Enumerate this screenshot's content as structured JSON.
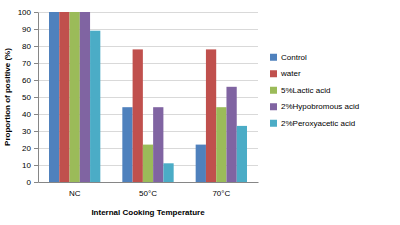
{
  "chart_data": {
    "type": "bar",
    "categories": [
      "NC",
      "50°C",
      "70°C"
    ],
    "series": [
      {
        "name": "Control",
        "color": "#4f81bd",
        "values": [
          100,
          44,
          22
        ]
      },
      {
        "name": "water",
        "color": "#c0504d",
        "values": [
          100,
          78,
          78
        ]
      },
      {
        "name": "5%Lactic acid",
        "color": "#9bbb59",
        "values": [
          100,
          22,
          44
        ]
      },
      {
        "name": "2%Hypobromous acid",
        "color": "#8064a2",
        "values": [
          100,
          44,
          56
        ]
      },
      {
        "name": "2%Peroxyacetic acid",
        "color": "#4bacc6",
        "values": [
          89,
          11,
          33
        ]
      }
    ],
    "x_label": "Internal Cooking Temperature",
    "y_label": "Proportion of positive (%)",
    "ylim": [
      0,
      100
    ],
    "yticks": [
      0,
      10,
      20,
      30,
      40,
      50,
      60,
      70,
      80,
      90,
      100
    ],
    "grid": true,
    "legend": "right"
  }
}
